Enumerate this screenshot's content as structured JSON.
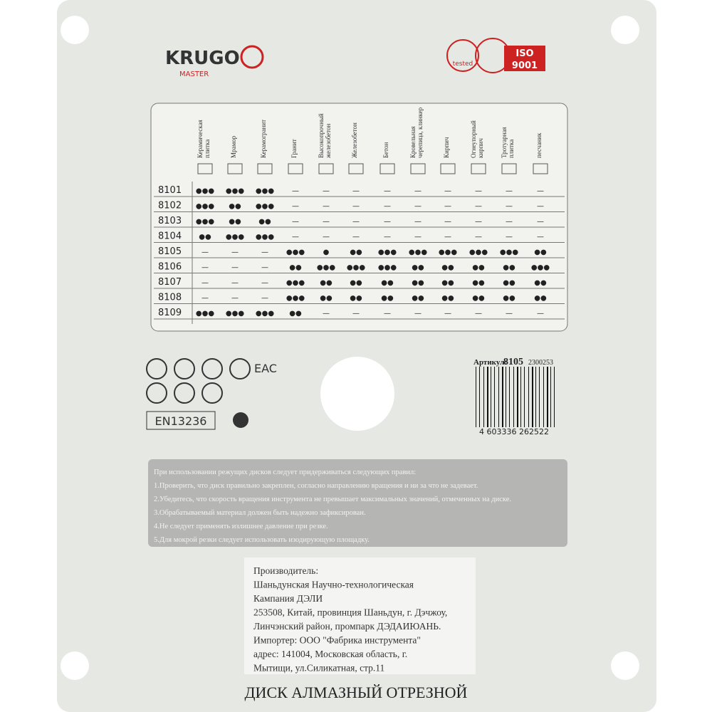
{
  "logo": {
    "brand": "KRUGO",
    "sub": "MASTER"
  },
  "badges": {
    "tested": "tested",
    "iso": "ISO",
    "iso_num": "9001"
  },
  "table": {
    "headers": [
      [
        "Керамическая",
        "плитка"
      ],
      [
        "Мрамор"
      ],
      [
        "Керамогранит"
      ],
      [
        "Гранит"
      ],
      [
        "Высокопрочный",
        "железобетон"
      ],
      [
        "Железобетон"
      ],
      [
        "Бетон"
      ],
      [
        "Кровельная",
        "черепица, клинкер"
      ],
      [
        "Кирпич"
      ],
      [
        "Огнеупорный",
        "кирпич"
      ],
      [
        "Тротуарная",
        "плитка"
      ],
      [
        "песчаник"
      ]
    ],
    "rows": [
      {
        "code": "8101",
        "cells": [
          "●●●",
          "●●●",
          "●●●",
          "—",
          "—",
          "—",
          "—",
          "—",
          "—",
          "—",
          "—",
          "—"
        ]
      },
      {
        "code": "8102",
        "cells": [
          "●●●",
          "●●",
          "●●●",
          "—",
          "—",
          "—",
          "—",
          "—",
          "—",
          "—",
          "—",
          "—"
        ]
      },
      {
        "code": "8103",
        "cells": [
          "●●●",
          "●●",
          "●●",
          "—",
          "—",
          "—",
          "—",
          "—",
          "—",
          "—",
          "—",
          "—"
        ]
      },
      {
        "code": "8104",
        "cells": [
          "●●",
          "●●●",
          "●●●",
          "—",
          "—",
          "—",
          "—",
          "—",
          "—",
          "—",
          "—",
          "—"
        ]
      },
      {
        "code": "8105",
        "cells": [
          "—",
          "—",
          "—",
          "●●●",
          "●",
          "●●",
          "●●●",
          "●●●",
          "●●●",
          "●●●",
          "●●●",
          "●●"
        ]
      },
      {
        "code": "8106",
        "cells": [
          "—",
          "—",
          "—",
          "●●",
          "●●●",
          "●●●",
          "●●●",
          "●●",
          "●●",
          "●●",
          "●●",
          "●●●"
        ]
      },
      {
        "code": "8107",
        "cells": [
          "—",
          "—",
          "—",
          "●●●",
          "●●",
          "●●",
          "●●",
          "●●",
          "●●",
          "●●",
          "●●",
          "●●"
        ]
      },
      {
        "code": "8108",
        "cells": [
          "—",
          "—",
          "—",
          "●●●",
          "●●",
          "●●",
          "●●",
          "●●",
          "●●",
          "●●",
          "●●",
          "●●"
        ]
      },
      {
        "code": "8109",
        "cells": [
          "●●●",
          "●●●",
          "●●●",
          "●●",
          "—",
          "—",
          "—",
          "—",
          "—",
          "—",
          "—",
          "—"
        ]
      }
    ]
  },
  "marks": {
    "eac": "EAC",
    "standard": "EN13236"
  },
  "article": {
    "label": "Артикул:",
    "code": "8105",
    "suffix": "2300253",
    "barcode": "4 603336 262522"
  },
  "rules": [
    "При использовании режущих дисков следует придерживаться следующих правил:",
    "1.Проверить, что диск правильно закреплен, согласно направлению вращения и ни за что не задевает.",
    "2.Убедитесь, что скорость вращения инструмента не превышает максимальных значений, отмеченных на диске.",
    "3.Обрабатываемый материал должен быть надежно зафиксирован.",
    "4.Не следует применять излишнее давление при резке.",
    "5.Для мокрой резки следует использовать изодирующую площадку."
  ],
  "maker": [
    "Производитель:",
    "Шаньдунская Научно-технологическая",
    "Кампания ДЭЛИ",
    "253508, Китай, провинция Шаньдун, г. Дэчжоу,",
    "Линчэнский район, промпарк ДЭДАИЮАНЬ.",
    "Импортер: ООО \"Фабрика инструмента\"",
    "адрес: 141004, Московская область, г.",
    "Мытищи, ул.Силикатная, стр.11"
  ],
  "product": "ДИСК АЛМАЗНЫЙ ОТРЕЗНОЙ"
}
